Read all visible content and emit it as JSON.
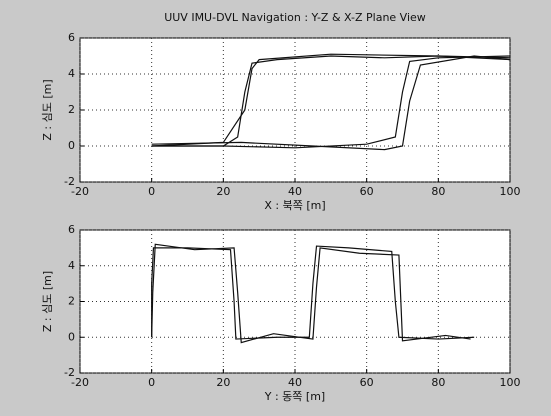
{
  "chart_data": [
    {
      "type": "line",
      "title": "UUV IMU-DVL Navigation : Y-Z & X-Z Plane View",
      "xlabel": "X : 북쪽 [m]",
      "ylabel": "Z : 심도 [m]",
      "xlim": [
        -20,
        100
      ],
      "xticks": [
        -20,
        0,
        20,
        40,
        60,
        80,
        100
      ],
      "ylim": [
        -2,
        6
      ],
      "yticks": [
        -2,
        0,
        2,
        4,
        6
      ],
      "grid": true,
      "series": [
        {
          "color": "#111111",
          "x": [
            0,
            10,
            20,
            24,
            26,
            28,
            35,
            50,
            65,
            80,
            100
          ],
          "values": [
            0,
            0,
            0,
            0.5,
            3,
            4.6,
            4.8,
            5,
            4.9,
            5,
            4.9
          ]
        },
        {
          "color": "#111111",
          "x": [
            0,
            20,
            40,
            60,
            68,
            70,
            72,
            80,
            100
          ],
          "values": [
            0,
            0,
            -0.1,
            0.1,
            0.5,
            3,
            4.7,
            4.9,
            5
          ]
        },
        {
          "color": "#111111",
          "x": [
            0,
            25,
            45,
            65,
            70,
            72,
            75,
            90,
            100
          ],
          "values": [
            0.1,
            0.2,
            0,
            -0.2,
            0,
            2.5,
            4.5,
            5,
            4.8
          ]
        },
        {
          "color": "#111111",
          "x": [
            0,
            20,
            26,
            28,
            30,
            50,
            80,
            100
          ],
          "values": [
            0,
            0.2,
            2,
            4.3,
            4.8,
            5.1,
            5,
            4.8
          ]
        }
      ]
    },
    {
      "type": "line",
      "xlabel": "Y : 동쪽 [m]",
      "ylabel": "Z : 심도 [m]",
      "xlim": [
        -20,
        100
      ],
      "xticks": [
        -20,
        0,
        20,
        40,
        60,
        80,
        100
      ],
      "ylim": [
        -2,
        6
      ],
      "yticks": [
        -2,
        0,
        2,
        4,
        6
      ],
      "grid": true,
      "series": [
        {
          "color": "#111111",
          "x": [
            0,
            0,
            0.5,
            10,
            22,
            23,
            23.5,
            35,
            44,
            45,
            46,
            55,
            67,
            68,
            69,
            80,
            90
          ],
          "values": [
            0,
            3,
            5,
            5,
            4.9,
            2,
            -0.1,
            0,
            0,
            3,
            5.1,
            5,
            4.8,
            2,
            0,
            -0.1,
            0
          ]
        },
        {
          "color": "#111111",
          "x": [
            0,
            0.3,
            1,
            12,
            23,
            24,
            25,
            34,
            45,
            46,
            47,
            58,
            69,
            69.5,
            70,
            82,
            89
          ],
          "values": [
            0,
            2.5,
            5.2,
            4.9,
            5,
            2.5,
            -0.3,
            0.2,
            -0.1,
            2.8,
            5,
            4.7,
            4.6,
            2.2,
            -0.2,
            0.1,
            -0.1
          ]
        }
      ]
    }
  ]
}
